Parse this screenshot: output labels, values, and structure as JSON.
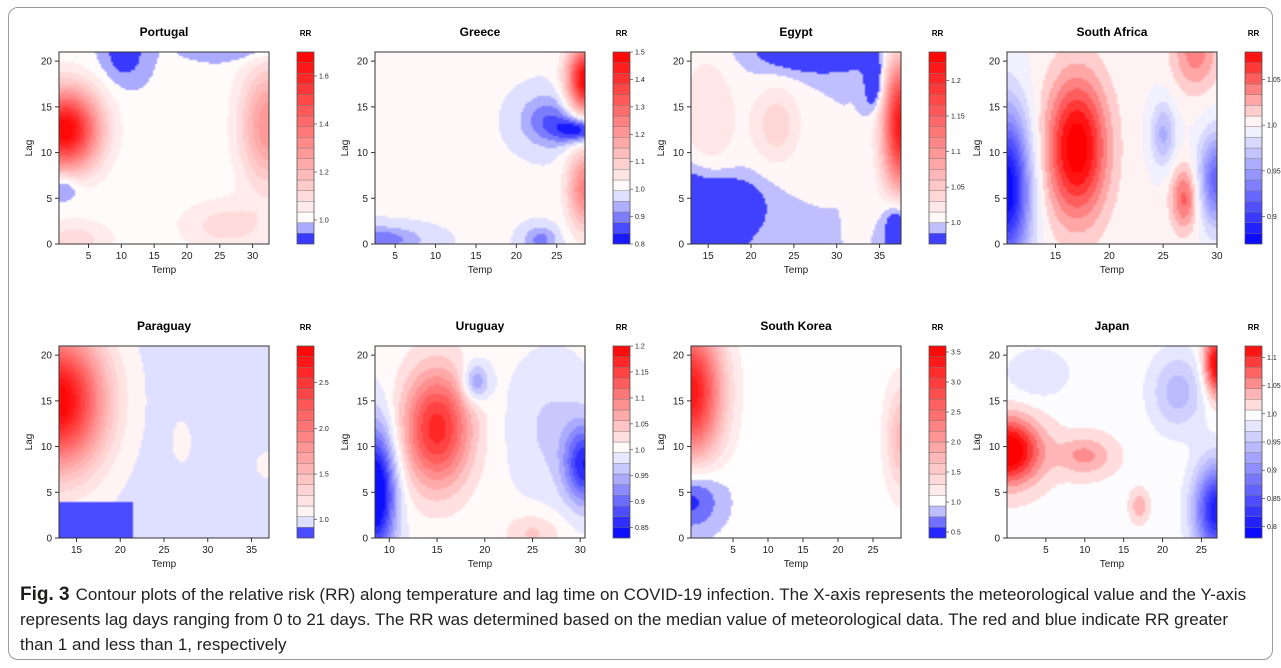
{
  "caption": {
    "label": "Fig. 3",
    "text": "Contour plots of the relative risk (RR) along temperature and lag time on COVID-19 infection. The X-axis represents the meteorological value and the Y-axis represents lag days ranging from 0 to 21 days. The RR was determined based on the median value of meteorological data. The red and blue indicate RR greater than 1 and less than 1, respectively"
  },
  "colors": {
    "red": "#ff0000",
    "blue": "#0000ff",
    "neutral": "#ffffff",
    "axis": "#333333"
  },
  "chart_data": [
    {
      "type": "heatmap",
      "title": "Portugal",
      "xlabel": "Temp",
      "ylabel": "Lag",
      "legend_title": "RR",
      "xlim": [
        0.5,
        32.5
      ],
      "ylim": [
        0,
        21
      ],
      "x_ticks": [
        5,
        10,
        15,
        20,
        25,
        30
      ],
      "y_ticks": [
        0,
        5,
        10,
        15,
        20
      ],
      "rr_range": [
        0.9,
        1.7
      ],
      "legend_ticks": [
        1.0,
        1.2,
        1.4,
        1.6
      ],
      "blobs": [
        {
          "x": 1.5,
          "y": 12.5,
          "sx": 3.5,
          "sy": 3.0,
          "amp": 0.7
        },
        {
          "x": 0.8,
          "y": 6.3,
          "sx": 2.0,
          "sy": 1.1,
          "amp": -0.12
        },
        {
          "x": 10.5,
          "y": 20.8,
          "sx": 2.4,
          "sy": 2.2,
          "amp": -0.09
        },
        {
          "x": 28.0,
          "y": 21.5,
          "sx": 5.0,
          "sy": 1.0,
          "amp": -0.08
        },
        {
          "x": 32.5,
          "y": 13.0,
          "sx": 3.0,
          "sy": 4.5,
          "amp": 0.3
        },
        {
          "x": 26.0,
          "y": 2.0,
          "sx": 5.0,
          "sy": 2.0,
          "amp": 0.1
        },
        {
          "x": 3.0,
          "y": 0.5,
          "sx": 4.0,
          "sy": 1.5,
          "amp": 0.1
        }
      ]
    },
    {
      "type": "heatmap",
      "title": "Greece",
      "xlabel": "Temp",
      "ylabel": "Lag",
      "legend_title": "RR",
      "xlim": [
        2.5,
        28.5
      ],
      "ylim": [
        0,
        21
      ],
      "x_ticks": [
        5,
        10,
        15,
        20,
        25
      ],
      "y_ticks": [
        0,
        5,
        10,
        15,
        20
      ],
      "rr_range": [
        0.8,
        1.5
      ],
      "legend_ticks": [
        0.8,
        0.9,
        1.0,
        1.1,
        1.2,
        1.3,
        1.4,
        1.5
      ],
      "blobs": [
        {
          "x": 28.5,
          "y": 18.0,
          "sx": 1.5,
          "sy": 2.5,
          "amp": 0.5
        },
        {
          "x": 28.5,
          "y": 6.0,
          "sx": 1.5,
          "sy": 3.0,
          "amp": 0.25
        },
        {
          "x": 28.0,
          "y": 12.5,
          "sx": 2.0,
          "sy": 1.0,
          "amp": -0.2
        },
        {
          "x": 24.0,
          "y": 13.5,
          "sx": 2.5,
          "sy": 2.0,
          "amp": -0.12
        },
        {
          "x": 2.5,
          "y": 0.5,
          "sx": 4.0,
          "sy": 1.0,
          "amp": -0.12
        },
        {
          "x": 23.0,
          "y": 0.5,
          "sx": 1.5,
          "sy": 1.0,
          "amp": -0.1
        }
      ]
    },
    {
      "type": "heatmap",
      "title": "Egypt",
      "xlabel": "Temp",
      "ylabel": "Lag",
      "legend_title": "RR",
      "xlim": [
        13,
        37.5
      ],
      "ylim": [
        0,
        21
      ],
      "x_ticks": [
        15,
        20,
        25,
        30,
        35
      ],
      "y_ticks": [
        0,
        5,
        10,
        15,
        20
      ],
      "rr_range": [
        0.97,
        1.24
      ],
      "legend_ticks": [
        1.0,
        1.05,
        1.1,
        1.15,
        1.2
      ],
      "blobs": [
        {
          "x": 13.0,
          "y": 2.0,
          "sx": 3.5,
          "sy": 4.0,
          "amp": -0.08
        },
        {
          "x": 18.0,
          "y": 4.0,
          "sx": 2.5,
          "sy": 2.0,
          "amp": -0.04
        },
        {
          "x": 28.0,
          "y": 21.0,
          "sx": 5.0,
          "sy": 1.5,
          "amp": -0.05
        },
        {
          "x": 34.5,
          "y": 17.5,
          "sx": 0.8,
          "sy": 2.0,
          "amp": -0.06
        },
        {
          "x": 37.5,
          "y": 13.0,
          "sx": 1.5,
          "sy": 5.0,
          "amp": 0.22
        },
        {
          "x": 37.0,
          "y": 1.5,
          "sx": 1.0,
          "sy": 2.5,
          "amp": -0.06
        },
        {
          "x": 23.0,
          "y": 13.0,
          "sx": 2.0,
          "sy": 3.0,
          "amp": 0.04
        },
        {
          "x": 15.0,
          "y": 13.0,
          "sx": 2.5,
          "sy": 6.0,
          "amp": 0.03
        }
      ]
    },
    {
      "type": "heatmap",
      "title": "South Africa",
      "xlabel": "Temp",
      "ylabel": "Lag",
      "legend_title": "RR",
      "xlim": [
        10.5,
        30
      ],
      "ylim": [
        0,
        21
      ],
      "x_ticks": [
        15,
        20,
        25,
        30
      ],
      "y_ticks": [
        0,
        5,
        10,
        15,
        20
      ],
      "rr_range": [
        0.87,
        1.08
      ],
      "legend_ticks": [
        0.9,
        0.95,
        1.0,
        1.05
      ],
      "blobs": [
        {
          "x": 17.0,
          "y": 10.5,
          "sx": 2.0,
          "sy": 5.5,
          "amp": 0.09
        },
        {
          "x": 10.5,
          "y": 6.0,
          "sx": 1.5,
          "sy": 6.0,
          "amp": -0.13
        },
        {
          "x": 25.0,
          "y": 12.0,
          "sx": 0.8,
          "sy": 2.5,
          "amp": -0.04
        },
        {
          "x": 27.0,
          "y": 5.0,
          "sx": 0.9,
          "sy": 2.5,
          "amp": 0.05
        },
        {
          "x": 28.0,
          "y": 21.0,
          "sx": 1.5,
          "sy": 3.0,
          "amp": 0.04
        },
        {
          "x": 30.0,
          "y": 7.0,
          "sx": 1.2,
          "sy": 3.5,
          "amp": -0.08
        }
      ]
    },
    {
      "type": "heatmap",
      "title": "Paraguay",
      "xlabel": "Temp",
      "ylabel": "Lag",
      "legend_title": "RR",
      "xlim": [
        13,
        37
      ],
      "ylim": [
        0,
        21
      ],
      "x_ticks": [
        15,
        20,
        25,
        30,
        35
      ],
      "y_ticks": [
        0,
        5,
        10,
        15,
        20
      ],
      "rr_range": [
        0.8,
        2.9
      ],
      "legend_ticks": [
        1.0,
        1.5,
        2.0,
        2.5
      ],
      "blobs": [
        {
          "x": 13.0,
          "y": 15.0,
          "sx": 3.5,
          "sy": 5.0,
          "amp": 1.9
        },
        {
          "x": 27.0,
          "y": 10.5,
          "sx": 0.7,
          "sy": 1.5,
          "amp": 0.1
        },
        {
          "x": 37.0,
          "y": 8.0,
          "sx": 1.0,
          "sy": 1.0,
          "amp": 0.1
        }
      ],
      "solid_regions": [
        {
          "x_max": 21.5,
          "y_max": 4.0,
          "rr": 0.85
        }
      ]
    },
    {
      "type": "heatmap",
      "title": "Uruguay",
      "xlabel": "Temp",
      "ylabel": "Lag",
      "legend_title": "RR",
      "xlim": [
        8.5,
        30.5
      ],
      "ylim": [
        0,
        21
      ],
      "x_ticks": [
        10,
        15,
        20,
        25,
        30
      ],
      "y_ticks": [
        0,
        5,
        10,
        15,
        20
      ],
      "rr_range": [
        0.83,
        1.2
      ],
      "legend_ticks": [
        0.85,
        0.9,
        0.95,
        1.0,
        1.05,
        1.1,
        1.15,
        1.2
      ],
      "blobs": [
        {
          "x": 15.0,
          "y": 12.0,
          "sx": 2.5,
          "sy": 4.5,
          "amp": 0.17
        },
        {
          "x": 8.5,
          "y": 5.0,
          "sx": 1.5,
          "sy": 5.0,
          "amp": -0.2
        },
        {
          "x": 19.0,
          "y": 17.0,
          "sx": 1.0,
          "sy": 1.5,
          "amp": -0.08
        },
        {
          "x": 30.5,
          "y": 8.0,
          "sx": 1.5,
          "sy": 3.0,
          "amp": -0.14
        },
        {
          "x": 27.0,
          "y": 12.0,
          "sx": 3.0,
          "sy": 5.0,
          "amp": -0.03
        },
        {
          "x": 25.0,
          "y": 0.5,
          "sx": 2.0,
          "sy": 1.5,
          "amp": 0.04
        }
      ]
    },
    {
      "type": "heatmap",
      "title": "South Korea",
      "xlabel": "Temp",
      "ylabel": "Lag",
      "legend_title": "RR",
      "xlim": [
        -1,
        29
      ],
      "ylim": [
        0,
        21
      ],
      "x_ticks": [
        5,
        10,
        15,
        20,
        25
      ],
      "y_ticks": [
        0,
        5,
        10,
        15,
        20
      ],
      "rr_range": [
        0.4,
        3.6
      ],
      "legend_ticks": [
        0.5,
        1.0,
        1.5,
        2.0,
        2.5,
        3.0,
        3.5
      ],
      "blobs": [
        {
          "x": -1.0,
          "y": 16.0,
          "sx": 3.0,
          "sy": 5.0,
          "amp": 2.4
        },
        {
          "x": 29.0,
          "y": 11.0,
          "sx": 1.5,
          "sy": 4.0,
          "amp": 0.7
        },
        {
          "x": -1.0,
          "y": 4.5,
          "sx": 3.0,
          "sy": 2.5,
          "amp": -0.6
        }
      ]
    },
    {
      "type": "heatmap",
      "title": "Japan",
      "xlabel": "Temp",
      "ylabel": "Lag",
      "legend_title": "RR",
      "xlim": [
        0,
        27
      ],
      "ylim": [
        0,
        21
      ],
      "x_ticks": [
        5,
        10,
        15,
        20,
        25
      ],
      "y_ticks": [
        0,
        5,
        10,
        15,
        20
      ],
      "rr_range": [
        0.78,
        1.12
      ],
      "legend_ticks": [
        0.8,
        0.85,
        0.9,
        0.95,
        1.0,
        1.05,
        1.1
      ],
      "blobs": [
        {
          "x": 0.0,
          "y": 9.5,
          "sx": 3.0,
          "sy": 2.5,
          "amp": 0.15
        },
        {
          "x": 10.0,
          "y": 9.0,
          "sx": 2.5,
          "sy": 1.5,
          "amp": 0.05
        },
        {
          "x": 27.0,
          "y": 19.0,
          "sx": 1.2,
          "sy": 2.5,
          "amp": 0.13
        },
        {
          "x": 27.0,
          "y": 3.0,
          "sx": 2.0,
          "sy": 3.5,
          "amp": -0.2
        },
        {
          "x": 22.0,
          "y": 16.0,
          "sx": 2.5,
          "sy": 3.0,
          "amp": -0.06
        },
        {
          "x": 4.0,
          "y": 18.0,
          "sx": 3.0,
          "sy": 2.0,
          "amp": -0.03
        },
        {
          "x": 17.0,
          "y": 3.5,
          "sx": 0.8,
          "sy": 1.2,
          "amp": 0.04
        }
      ]
    }
  ]
}
